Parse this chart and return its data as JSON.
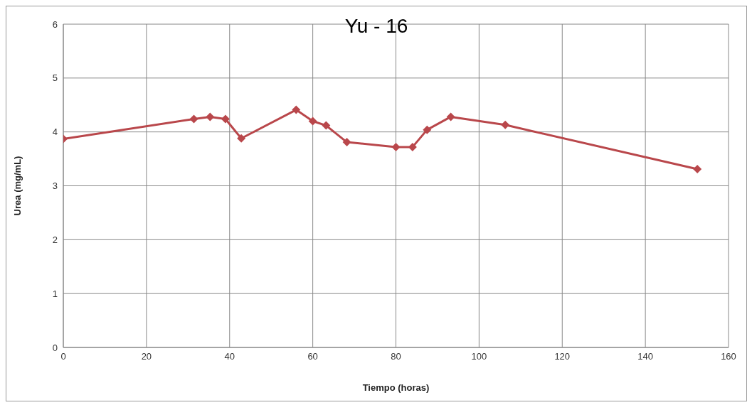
{
  "chart_data": {
    "type": "line",
    "title": "Yu - 16",
    "xlabel": "Tiempo (horas)",
    "ylabel": "Urea (mg/mL)",
    "x": [
      0,
      31.4,
      35.3,
      39,
      42.8,
      56,
      60,
      63.2,
      68.2,
      80,
      84,
      87.5,
      93.2,
      106.3,
      152.5
    ],
    "series": [
      {
        "color": "#b9474b",
        "values": [
          3.87,
          4.24,
          4.28,
          4.24,
          3.88,
          4.41,
          4.2,
          4.12,
          3.81,
          3.72,
          3.72,
          4.04,
          4.28,
          4.13,
          3.31
        ]
      }
    ],
    "xlim": [
      0,
      160
    ],
    "xticks": [
      0,
      20,
      40,
      60,
      80,
      100,
      120,
      140,
      160
    ],
    "ylim": [
      0,
      6
    ],
    "yticks": [
      0,
      1,
      2,
      3,
      4,
      5,
      6
    ],
    "grid": true,
    "marker": "diamond"
  }
}
